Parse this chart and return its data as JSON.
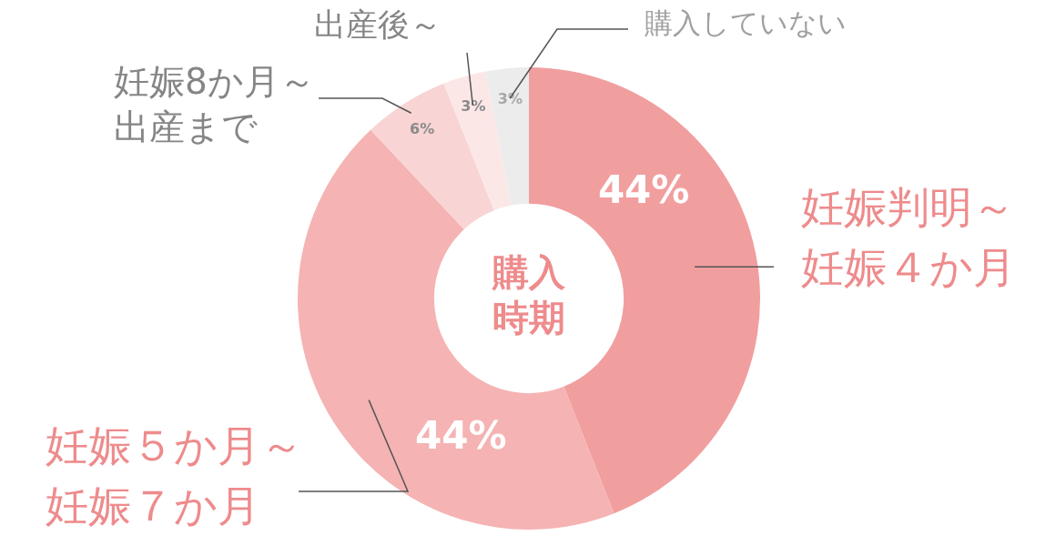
{
  "chart_data": {
    "type": "donut",
    "title": "購入時期",
    "categories": [
      "妊娠判明～妊娠４か月",
      "妊娠５か月～妊娠７か月",
      "妊娠8か月～出産まで",
      "出産後～",
      "購入していない"
    ],
    "values": [
      44,
      44,
      6,
      3,
      3
    ],
    "value_labels": [
      "44%",
      "44%",
      "6%",
      "3%",
      "3%"
    ],
    "colors": [
      "#f19e9f",
      "#f5b3b3",
      "#f8d4d4",
      "#fce7e7",
      "#ececec"
    ],
    "data_labels": true,
    "legend": false
  }
}
